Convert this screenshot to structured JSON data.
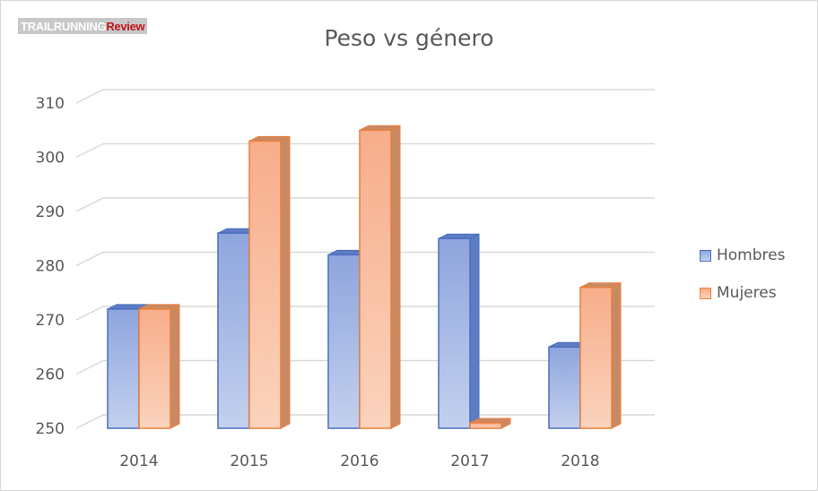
{
  "watermark": {
    "part1": "TRAILRUNNING",
    "part2": "Review"
  },
  "chart_data": {
    "type": "bar",
    "title": "Peso vs género",
    "xlabel": "",
    "ylabel": "",
    "categories": [
      "2014",
      "2015",
      "2016",
      "2017",
      "2018"
    ],
    "series": [
      {
        "name": "Hombres",
        "values": [
          272,
          286,
          282,
          285,
          265
        ]
      },
      {
        "name": "Mujeres",
        "values": [
          272,
          303,
          305,
          251,
          276
        ]
      }
    ],
    "ylim": [
      250,
      310
    ],
    "yticks": [
      "250",
      "260",
      "270",
      "280",
      "290",
      "300",
      "310"
    ],
    "grid": true,
    "legend_position": "right",
    "style": "3d-clustered-column",
    "colors": {
      "Hombres": {
        "light": "#c3d0ee",
        "dark": "#8ea5dd",
        "edge": "#4a6fbe",
        "side": "#5d7cc4"
      },
      "Mujeres": {
        "light": "#fbd3bd",
        "dark": "#f7ad8a",
        "edge": "#ec7e3a",
        "side": "#c88a64"
      }
    }
  }
}
